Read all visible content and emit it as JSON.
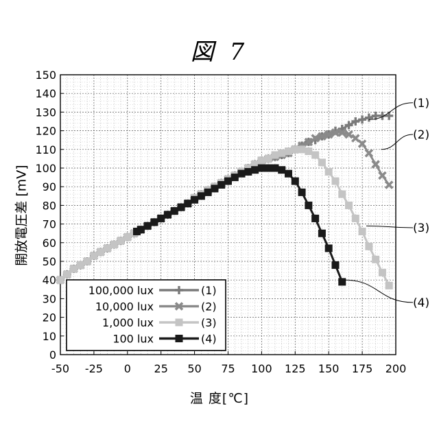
{
  "figure_title": "図 7",
  "chart_data": {
    "type": "line",
    "title": "",
    "xlabel": "温 度[℃]",
    "ylabel": "開放電圧差 [mV]",
    "xlim": [
      -50,
      200
    ],
    "ylim": [
      0,
      150
    ],
    "x_ticks": [
      -50,
      -25,
      0,
      25,
      50,
      75,
      100,
      125,
      150,
      175,
      200
    ],
    "y_ticks": [
      0,
      10,
      20,
      30,
      40,
      50,
      60,
      70,
      80,
      90,
      100,
      110,
      120,
      130,
      140,
      150
    ],
    "x_tick_labels": [
      "-50",
      "-25",
      "0",
      "25",
      "50",
      "75",
      "100",
      "125",
      "150",
      "175",
      "200"
    ],
    "y_tick_labels": [
      "0",
      "10",
      "20",
      "30",
      "40",
      "50",
      "60",
      "70",
      "80",
      "90",
      "100",
      "110",
      "120",
      "130",
      "140",
      "150"
    ],
    "grid": true,
    "legend_position": "bottom-left",
    "series": [
      {
        "name": "100,000 lux",
        "tag": "(1)",
        "color": "#7a7a7a",
        "marker": "plus",
        "x": [
          -50,
          -45,
          -40,
          -35,
          -30,
          -25,
          -20,
          -15,
          -10,
          -5,
          0,
          5,
          10,
          15,
          20,
          25,
          30,
          35,
          40,
          45,
          50,
          55,
          60,
          65,
          70,
          75,
          80,
          85,
          90,
          95,
          100,
          105,
          110,
          115,
          120,
          125,
          130,
          135,
          140,
          145,
          150,
          155,
          160,
          165,
          170,
          175,
          180,
          185,
          190,
          195
        ],
        "y": [
          40,
          43,
          46,
          48,
          50,
          53,
          55,
          57,
          59,
          61,
          63,
          65,
          67,
          69,
          71,
          73,
          75,
          77,
          79,
          81,
          84,
          86,
          88,
          90,
          92,
          94,
          96,
          98,
          100,
          102,
          104,
          105,
          106,
          107,
          108,
          110,
          112,
          114,
          115,
          117,
          118,
          120,
          121,
          123,
          125,
          126,
          127,
          128,
          128,
          128
        ]
      },
      {
        "name": "10,000 lux",
        "tag": "(2)",
        "color": "#8a8a8a",
        "marker": "x",
        "x": [
          -50,
          -45,
          -40,
          -35,
          -30,
          -25,
          -20,
          -15,
          -10,
          -5,
          0,
          5,
          10,
          15,
          20,
          25,
          30,
          35,
          40,
          45,
          50,
          55,
          60,
          65,
          70,
          75,
          80,
          85,
          90,
          95,
          100,
          105,
          110,
          115,
          120,
          125,
          130,
          135,
          140,
          145,
          150,
          155,
          160,
          165,
          170,
          175,
          180,
          185,
          190,
          195
        ],
        "y": [
          40,
          43,
          46,
          48,
          50,
          53,
          55,
          57,
          59,
          61,
          63,
          65,
          67,
          69,
          71,
          73,
          75,
          77,
          79,
          81,
          84,
          86,
          88,
          90,
          92,
          94,
          96,
          98,
          100,
          102,
          104,
          105,
          106,
          107,
          108,
          110,
          112,
          114,
          116,
          117,
          118,
          119,
          119,
          118,
          116,
          113,
          108,
          102,
          96,
          91
        ]
      },
      {
        "name": "1,000 lux",
        "tag": "(3)",
        "color": "#c4c4c4",
        "marker": "square",
        "x": [
          -50,
          -45,
          -40,
          -35,
          -30,
          -25,
          -20,
          -15,
          -10,
          -5,
          0,
          5,
          10,
          15,
          20,
          25,
          30,
          35,
          40,
          45,
          50,
          55,
          60,
          65,
          70,
          75,
          80,
          85,
          90,
          95,
          100,
          105,
          110,
          115,
          120,
          125,
          130,
          135,
          140,
          145,
          150,
          155,
          160,
          165,
          170,
          175,
          180,
          185,
          190,
          195
        ],
        "y": [
          40,
          43,
          46,
          48,
          50,
          53,
          55,
          57,
          59,
          61,
          63,
          65,
          67,
          69,
          71,
          73,
          75,
          77,
          79,
          81,
          84,
          86,
          88,
          90,
          92,
          94,
          96,
          98,
          100,
          102,
          104,
          105,
          107,
          108,
          109,
          110,
          110,
          109,
          107,
          103,
          98,
          93,
          86,
          80,
          73,
          66,
          58,
          51,
          44,
          37
        ]
      },
      {
        "name": "100 lux",
        "tag": "(4)",
        "color": "#1a1a1a",
        "marker": "square",
        "x": [
          7,
          10,
          15,
          20,
          25,
          30,
          35,
          40,
          45,
          50,
          55,
          60,
          65,
          70,
          75,
          80,
          85,
          90,
          95,
          100,
          105,
          110,
          115,
          120,
          125,
          130,
          135,
          140,
          145,
          150,
          155,
          160
        ],
        "y": [
          66,
          67,
          69,
          71,
          73,
          75,
          77,
          79,
          81,
          83,
          85,
          87,
          89,
          91,
          93,
          95,
          97,
          98,
          99,
          100,
          100,
          100,
          99,
          97,
          93,
          87,
          80,
          73,
          65,
          57,
          48,
          39
        ]
      }
    ],
    "legend": {
      "labels": [
        "100,000 lux",
        "10,000 lux",
        "1,000 lux",
        "100 lux"
      ],
      "tags": [
        "(1)",
        "(2)",
        "(3)",
        "(4)"
      ]
    },
    "callouts": [
      {
        "text": "(1)",
        "anchor_x": 180,
        "anchor_y": 126,
        "label_y": 135
      },
      {
        "text": "(2)",
        "anchor_x": 189,
        "anchor_y": 110,
        "label_y": 118
      },
      {
        "text": "(3)",
        "anchor_x": 178,
        "anchor_y": 69,
        "label_y": 68
      },
      {
        "text": "(4)",
        "anchor_x": 162,
        "anchor_y": 40,
        "label_y": 28
      }
    ]
  }
}
